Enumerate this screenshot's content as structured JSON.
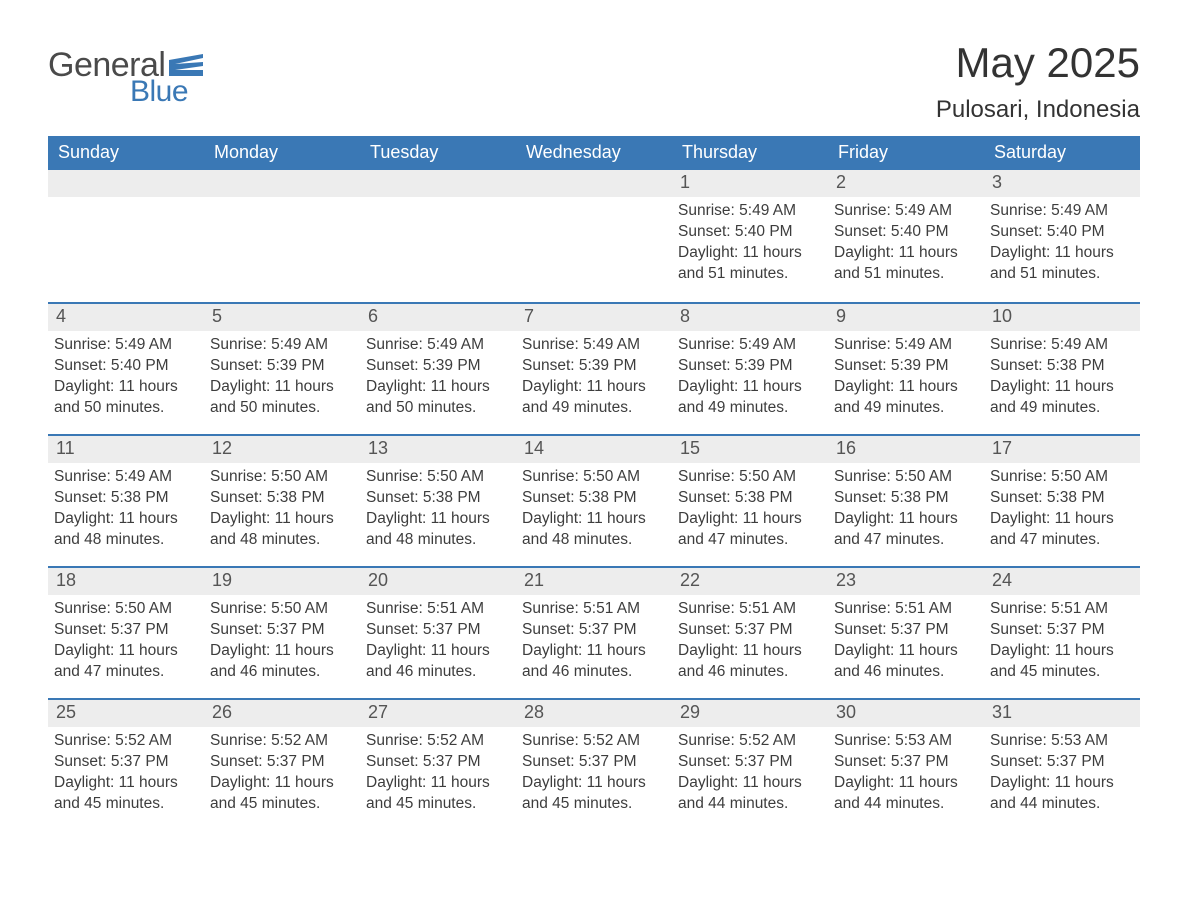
{
  "logo": {
    "text_general": "General",
    "text_blue": "Blue",
    "flag_color": "#3a78b5"
  },
  "header": {
    "month_title": "May 2025",
    "location": "Pulosari, Indonesia"
  },
  "colors": {
    "header_bg": "#3a78b5",
    "header_text": "#ffffff",
    "daynum_bg": "#ededed",
    "border": "#3a78b5",
    "body_bg": "#ffffff",
    "text": "#333333"
  },
  "weekdays": [
    "Sunday",
    "Monday",
    "Tuesday",
    "Wednesday",
    "Thursday",
    "Friday",
    "Saturday"
  ],
  "weeks": [
    [
      {
        "day": "",
        "sunrise": "",
        "sunset": "",
        "daylight": ""
      },
      {
        "day": "",
        "sunrise": "",
        "sunset": "",
        "daylight": ""
      },
      {
        "day": "",
        "sunrise": "",
        "sunset": "",
        "daylight": ""
      },
      {
        "day": "",
        "sunrise": "",
        "sunset": "",
        "daylight": ""
      },
      {
        "day": "1",
        "sunrise": "Sunrise: 5:49 AM",
        "sunset": "Sunset: 5:40 PM",
        "daylight": "Daylight: 11 hours and 51 minutes."
      },
      {
        "day": "2",
        "sunrise": "Sunrise: 5:49 AM",
        "sunset": "Sunset: 5:40 PM",
        "daylight": "Daylight: 11 hours and 51 minutes."
      },
      {
        "day": "3",
        "sunrise": "Sunrise: 5:49 AM",
        "sunset": "Sunset: 5:40 PM",
        "daylight": "Daylight: 11 hours and 51 minutes."
      }
    ],
    [
      {
        "day": "4",
        "sunrise": "Sunrise: 5:49 AM",
        "sunset": "Sunset: 5:40 PM",
        "daylight": "Daylight: 11 hours and 50 minutes."
      },
      {
        "day": "5",
        "sunrise": "Sunrise: 5:49 AM",
        "sunset": "Sunset: 5:39 PM",
        "daylight": "Daylight: 11 hours and 50 minutes."
      },
      {
        "day": "6",
        "sunrise": "Sunrise: 5:49 AM",
        "sunset": "Sunset: 5:39 PM",
        "daylight": "Daylight: 11 hours and 50 minutes."
      },
      {
        "day": "7",
        "sunrise": "Sunrise: 5:49 AM",
        "sunset": "Sunset: 5:39 PM",
        "daylight": "Daylight: 11 hours and 49 minutes."
      },
      {
        "day": "8",
        "sunrise": "Sunrise: 5:49 AM",
        "sunset": "Sunset: 5:39 PM",
        "daylight": "Daylight: 11 hours and 49 minutes."
      },
      {
        "day": "9",
        "sunrise": "Sunrise: 5:49 AM",
        "sunset": "Sunset: 5:39 PM",
        "daylight": "Daylight: 11 hours and 49 minutes."
      },
      {
        "day": "10",
        "sunrise": "Sunrise: 5:49 AM",
        "sunset": "Sunset: 5:38 PM",
        "daylight": "Daylight: 11 hours and 49 minutes."
      }
    ],
    [
      {
        "day": "11",
        "sunrise": "Sunrise: 5:49 AM",
        "sunset": "Sunset: 5:38 PM",
        "daylight": "Daylight: 11 hours and 48 minutes."
      },
      {
        "day": "12",
        "sunrise": "Sunrise: 5:50 AM",
        "sunset": "Sunset: 5:38 PM",
        "daylight": "Daylight: 11 hours and 48 minutes."
      },
      {
        "day": "13",
        "sunrise": "Sunrise: 5:50 AM",
        "sunset": "Sunset: 5:38 PM",
        "daylight": "Daylight: 11 hours and 48 minutes."
      },
      {
        "day": "14",
        "sunrise": "Sunrise: 5:50 AM",
        "sunset": "Sunset: 5:38 PM",
        "daylight": "Daylight: 11 hours and 48 minutes."
      },
      {
        "day": "15",
        "sunrise": "Sunrise: 5:50 AM",
        "sunset": "Sunset: 5:38 PM",
        "daylight": "Daylight: 11 hours and 47 minutes."
      },
      {
        "day": "16",
        "sunrise": "Sunrise: 5:50 AM",
        "sunset": "Sunset: 5:38 PM",
        "daylight": "Daylight: 11 hours and 47 minutes."
      },
      {
        "day": "17",
        "sunrise": "Sunrise: 5:50 AM",
        "sunset": "Sunset: 5:38 PM",
        "daylight": "Daylight: 11 hours and 47 minutes."
      }
    ],
    [
      {
        "day": "18",
        "sunrise": "Sunrise: 5:50 AM",
        "sunset": "Sunset: 5:37 PM",
        "daylight": "Daylight: 11 hours and 47 minutes."
      },
      {
        "day": "19",
        "sunrise": "Sunrise: 5:50 AM",
        "sunset": "Sunset: 5:37 PM",
        "daylight": "Daylight: 11 hours and 46 minutes."
      },
      {
        "day": "20",
        "sunrise": "Sunrise: 5:51 AM",
        "sunset": "Sunset: 5:37 PM",
        "daylight": "Daylight: 11 hours and 46 minutes."
      },
      {
        "day": "21",
        "sunrise": "Sunrise: 5:51 AM",
        "sunset": "Sunset: 5:37 PM",
        "daylight": "Daylight: 11 hours and 46 minutes."
      },
      {
        "day": "22",
        "sunrise": "Sunrise: 5:51 AM",
        "sunset": "Sunset: 5:37 PM",
        "daylight": "Daylight: 11 hours and 46 minutes."
      },
      {
        "day": "23",
        "sunrise": "Sunrise: 5:51 AM",
        "sunset": "Sunset: 5:37 PM",
        "daylight": "Daylight: 11 hours and 46 minutes."
      },
      {
        "day": "24",
        "sunrise": "Sunrise: 5:51 AM",
        "sunset": "Sunset: 5:37 PM",
        "daylight": "Daylight: 11 hours and 45 minutes."
      }
    ],
    [
      {
        "day": "25",
        "sunrise": "Sunrise: 5:52 AM",
        "sunset": "Sunset: 5:37 PM",
        "daylight": "Daylight: 11 hours and 45 minutes."
      },
      {
        "day": "26",
        "sunrise": "Sunrise: 5:52 AM",
        "sunset": "Sunset: 5:37 PM",
        "daylight": "Daylight: 11 hours and 45 minutes."
      },
      {
        "day": "27",
        "sunrise": "Sunrise: 5:52 AM",
        "sunset": "Sunset: 5:37 PM",
        "daylight": "Daylight: 11 hours and 45 minutes."
      },
      {
        "day": "28",
        "sunrise": "Sunrise: 5:52 AM",
        "sunset": "Sunset: 5:37 PM",
        "daylight": "Daylight: 11 hours and 45 minutes."
      },
      {
        "day": "29",
        "sunrise": "Sunrise: 5:52 AM",
        "sunset": "Sunset: 5:37 PM",
        "daylight": "Daylight: 11 hours and 44 minutes."
      },
      {
        "day": "30",
        "sunrise": "Sunrise: 5:53 AM",
        "sunset": "Sunset: 5:37 PM",
        "daylight": "Daylight: 11 hours and 44 minutes."
      },
      {
        "day": "31",
        "sunrise": "Sunrise: 5:53 AM",
        "sunset": "Sunset: 5:37 PM",
        "daylight": "Daylight: 11 hours and 44 minutes."
      }
    ]
  ]
}
